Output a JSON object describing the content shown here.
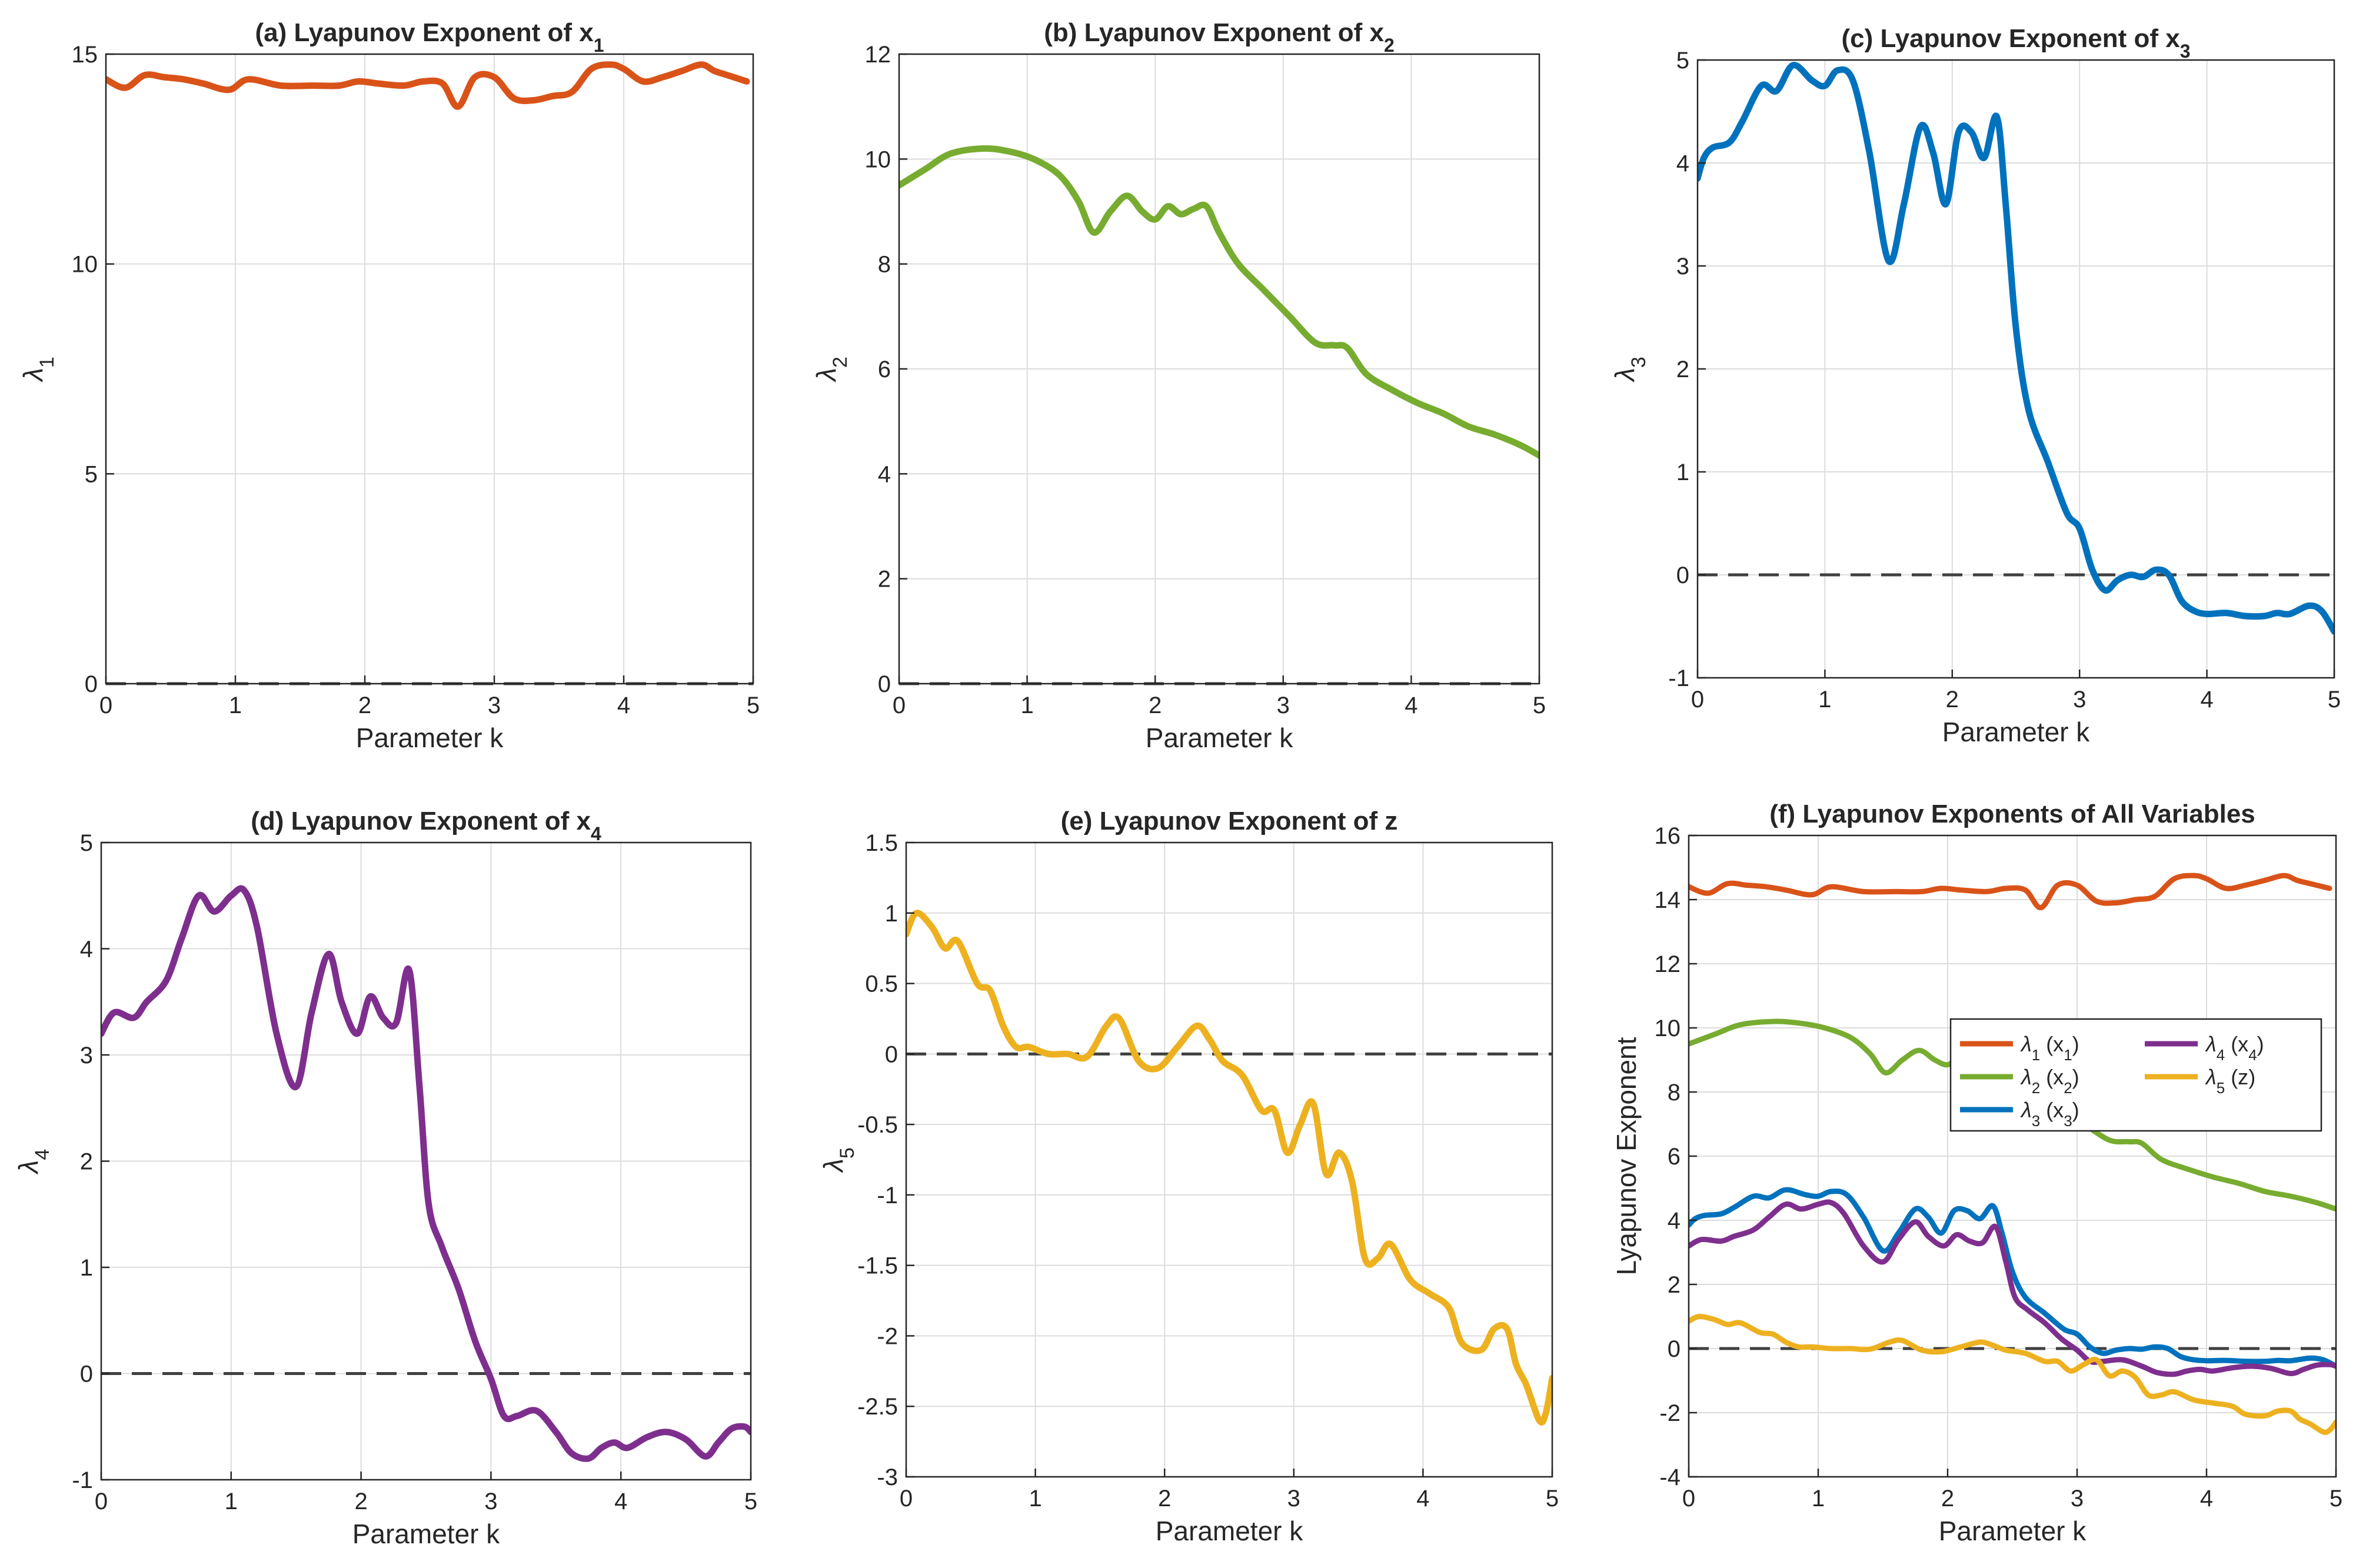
{
  "colors": {
    "lambda1": "#D95319",
    "lambda2": "#77AC30",
    "lambda3": "#0072BD",
    "lambda4": "#7E2F8E",
    "lambda5": "#EDB120",
    "zero_line": "#404040",
    "grid": "#DCDCDC",
    "axes": "#262626"
  },
  "chart_data": [
    {
      "id": "a",
      "type": "line",
      "title": "(a)  Lyapunov  Exponent  of  x",
      "title_sub": "1",
      "xlabel": "Parameter k",
      "ylabel": "λ",
      "ylabel_sub": "1",
      "xlim": [
        0,
        5
      ],
      "ylim": [
        0,
        15
      ],
      "xticks": [
        0,
        1,
        2,
        3,
        4,
        5
      ],
      "yticks": [
        0,
        5,
        10,
        15
      ],
      "grid": true,
      "zero_line": true,
      "series": [
        {
          "name": "λ1 (x1)",
          "color_key": "lambda1",
          "x": [
            0,
            0.15,
            0.3,
            0.45,
            0.6,
            0.75,
            0.95,
            1.1,
            1.35,
            1.6,
            1.8,
            1.95,
            2.1,
            2.3,
            2.45,
            2.6,
            2.72,
            2.85,
            3.0,
            3.15,
            3.3,
            3.45,
            3.6,
            3.75,
            3.9,
            4.0,
            4.15,
            4.3,
            4.45,
            4.6,
            4.7,
            4.8,
            4.95
          ],
          "y": [
            14.4,
            14.2,
            14.5,
            14.45,
            14.4,
            14.3,
            14.15,
            14.4,
            14.25,
            14.25,
            14.25,
            14.35,
            14.3,
            14.25,
            14.35,
            14.3,
            13.75,
            14.45,
            14.45,
            13.95,
            13.9,
            14.0,
            14.1,
            14.65,
            14.75,
            14.65,
            14.35,
            14.45,
            14.6,
            14.75,
            14.6,
            14.5,
            14.35
          ]
        }
      ]
    },
    {
      "id": "b",
      "type": "line",
      "title": "(b)  Lyapunov  Exponent  of  x",
      "title_sub": "2",
      "xlabel": "Parameter k",
      "ylabel": "λ",
      "ylabel_sub": "2",
      "xlim": [
        0,
        5
      ],
      "ylim": [
        0,
        12
      ],
      "xticks": [
        0,
        1,
        2,
        3,
        4,
        5
      ],
      "yticks": [
        0,
        2,
        4,
        6,
        8,
        10,
        12
      ],
      "grid": true,
      "zero_line": true,
      "series": [
        {
          "name": "λ2 (x2)",
          "color_key": "lambda2",
          "x": [
            0,
            0.2,
            0.4,
            0.65,
            0.85,
            1.05,
            1.25,
            1.4,
            1.52,
            1.65,
            1.78,
            1.9,
            2.0,
            2.1,
            2.2,
            2.3,
            2.4,
            2.5,
            2.65,
            2.85,
            3.05,
            3.25,
            3.4,
            3.5,
            3.65,
            3.85,
            4.05,
            4.25,
            4.45,
            4.65,
            4.85,
            5.0
          ],
          "y": [
            9.5,
            9.8,
            10.1,
            10.2,
            10.15,
            10.0,
            9.7,
            9.2,
            8.6,
            9.0,
            9.3,
            9.0,
            8.85,
            9.1,
            8.95,
            9.05,
            9.1,
            8.6,
            8.0,
            7.5,
            7.0,
            6.5,
            6.45,
            6.4,
            5.9,
            5.6,
            5.35,
            5.15,
            4.9,
            4.75,
            4.55,
            4.35
          ]
        }
      ]
    },
    {
      "id": "c",
      "type": "line",
      "title": "(c)  Lyapunov  Exponent  of  x",
      "title_sub": "3",
      "xlabel": "Parameter k",
      "ylabel": "λ",
      "ylabel_sub": "3",
      "xlim": [
        0,
        5
      ],
      "ylim": [
        -1,
        5
      ],
      "xticks": [
        0,
        1,
        2,
        3,
        4,
        5
      ],
      "yticks": [
        -1,
        0,
        1,
        2,
        3,
        4,
        5
      ],
      "grid": true,
      "zero_line": true,
      "series": [
        {
          "name": "λ3 (x3)",
          "color_key": "lambda3",
          "x": [
            0,
            0.05,
            0.12,
            0.25,
            0.35,
            0.5,
            0.62,
            0.75,
            0.9,
            1.0,
            1.1,
            1.22,
            1.35,
            1.5,
            1.62,
            1.75,
            1.85,
            1.95,
            2.05,
            2.15,
            2.25,
            2.35,
            2.42,
            2.5,
            2.6,
            2.75,
            2.9,
            3.0,
            3.1,
            3.2,
            3.3,
            3.4,
            3.5,
            3.6,
            3.7,
            3.8,
            3.9,
            4.0,
            4.15,
            4.3,
            4.45,
            4.55,
            4.65,
            4.8,
            4.9,
            5.0
          ],
          "y": [
            3.85,
            4.05,
            4.15,
            4.2,
            4.4,
            4.75,
            4.7,
            4.95,
            4.8,
            4.75,
            4.9,
            4.8,
            4.1,
            3.05,
            3.6,
            4.35,
            4.1,
            3.6,
            4.3,
            4.3,
            4.05,
            4.45,
            3.6,
            2.4,
            1.6,
            1.1,
            0.6,
            0.45,
            0.05,
            -0.15,
            -0.05,
            0.0,
            -0.02,
            0.05,
            0.0,
            -0.25,
            -0.35,
            -0.38,
            -0.37,
            -0.4,
            -0.4,
            -0.37,
            -0.38,
            -0.3,
            -0.35,
            -0.55
          ]
        }
      ]
    },
    {
      "id": "d",
      "type": "line",
      "title": "(d)  Lyapunov  Exponent  of  x",
      "title_sub": "4",
      "xlabel": "Parameter k",
      "ylabel": "λ",
      "ylabel_sub": "4",
      "xlim": [
        0,
        5
      ],
      "ylim": [
        -1,
        5
      ],
      "xticks": [
        0,
        1,
        2,
        3,
        4,
        5
      ],
      "yticks": [
        -1,
        0,
        1,
        2,
        3,
        4,
        5
      ],
      "grid": true,
      "zero_line": true,
      "series": [
        {
          "name": "λ4 (x4)",
          "color_key": "lambda4",
          "x": [
            0,
            0.1,
            0.25,
            0.35,
            0.5,
            0.62,
            0.75,
            0.87,
            1.0,
            1.1,
            1.2,
            1.35,
            1.5,
            1.62,
            1.75,
            1.85,
            1.97,
            2.07,
            2.17,
            2.27,
            2.37,
            2.45,
            2.52,
            2.62,
            2.75,
            2.88,
            3.0,
            3.1,
            3.2,
            3.35,
            3.5,
            3.62,
            3.75,
            3.85,
            3.95,
            4.05,
            4.2,
            4.35,
            4.5,
            4.65,
            4.75,
            4.85,
            4.95,
            5.0
          ],
          "y": [
            3.2,
            3.4,
            3.35,
            3.5,
            3.7,
            4.1,
            4.5,
            4.35,
            4.5,
            4.55,
            4.2,
            3.2,
            2.7,
            3.4,
            3.95,
            3.5,
            3.2,
            3.55,
            3.35,
            3.3,
            3.8,
            2.7,
            1.6,
            1.2,
            0.8,
            0.3,
            -0.05,
            -0.4,
            -0.4,
            -0.35,
            -0.55,
            -0.75,
            -0.8,
            -0.7,
            -0.65,
            -0.7,
            -0.6,
            -0.55,
            -0.62,
            -0.78,
            -0.65,
            -0.52,
            -0.5,
            -0.55
          ]
        }
      ]
    },
    {
      "id": "e",
      "type": "line",
      "title": "(e) Lyapunov Exponent of z",
      "title_sub": "",
      "xlabel": "Parameter k",
      "ylabel": "λ",
      "ylabel_sub": "5",
      "xlim": [
        0,
        5
      ],
      "ylim": [
        -3,
        1.5
      ],
      "xticks": [
        0,
        1,
        2,
        3,
        4,
        5
      ],
      "yticks": [
        -3,
        -2.5,
        -2,
        -1.5,
        -1,
        -0.5,
        0,
        0.5,
        1,
        1.5
      ],
      "grid": true,
      "zero_line": true,
      "series": [
        {
          "name": "λ5 (z)",
          "color_key": "lambda5",
          "x": [
            0,
            0.08,
            0.2,
            0.3,
            0.4,
            0.55,
            0.65,
            0.75,
            0.85,
            0.95,
            1.1,
            1.25,
            1.4,
            1.55,
            1.65,
            1.8,
            1.95,
            2.1,
            2.25,
            2.35,
            2.45,
            2.6,
            2.75,
            2.85,
            2.95,
            3.05,
            3.15,
            3.25,
            3.35,
            3.45,
            3.55,
            3.65,
            3.75,
            3.9,
            4.05,
            4.2,
            4.3,
            4.45,
            4.55,
            4.65,
            4.72,
            4.8,
            4.9,
            4.95,
            5.0
          ],
          "y": [
            0.85,
            1.0,
            0.9,
            0.75,
            0.8,
            0.5,
            0.45,
            0.2,
            0.05,
            0.05,
            0.0,
            0.0,
            -0.02,
            0.2,
            0.25,
            -0.05,
            -0.1,
            0.05,
            0.2,
            0.1,
            -0.05,
            -0.15,
            -0.4,
            -0.4,
            -0.7,
            -0.5,
            -0.35,
            -0.85,
            -0.7,
            -0.9,
            -1.45,
            -1.45,
            -1.35,
            -1.6,
            -1.7,
            -1.8,
            -2.05,
            -2.1,
            -1.95,
            -1.95,
            -2.2,
            -2.35,
            -2.6,
            -2.55,
            -2.3
          ]
        }
      ]
    },
    {
      "id": "f",
      "type": "line",
      "title": "(f) Lyapunov Exponents of All Variables",
      "title_sub": "",
      "xlabel": "Parameter k",
      "ylabel": "Lyapunov Exponent",
      "ylabel_sub": "",
      "xlim": [
        0,
        5
      ],
      "ylim": [
        -4,
        16
      ],
      "xticks": [
        0,
        1,
        2,
        3,
        4,
        5
      ],
      "yticks": [
        -4,
        -2,
        0,
        2,
        4,
        6,
        8,
        10,
        12,
        14,
        16
      ],
      "grid": true,
      "zero_line": true,
      "legend": {
        "placement": "right-middle",
        "entries": [
          {
            "sym": "λ",
            "sub": "1",
            "label": "  (x",
            "label_sub": "1",
            "tail": ")",
            "color_key": "lambda1"
          },
          {
            "sym": "λ",
            "sub": "4",
            "label": "  (x",
            "label_sub": "4",
            "tail": ")",
            "color_key": "lambda4"
          },
          {
            "sym": "λ",
            "sub": "2",
            "label": "  (x",
            "label_sub": "2",
            "tail": ")",
            "color_key": "lambda2"
          },
          {
            "sym": "λ",
            "sub": "5",
            "label": "  (z",
            "label_sub": "",
            "tail": ")",
            "color_key": "lambda5"
          },
          {
            "sym": "λ",
            "sub": "3",
            "label": "  (x",
            "label_sub": "3",
            "tail": ")",
            "color_key": "lambda3"
          }
        ]
      },
      "series_refs": [
        "a",
        "b",
        "c",
        "d",
        "e"
      ],
      "series_colors": [
        "lambda1",
        "lambda2",
        "lambda3",
        "lambda4",
        "lambda5"
      ]
    }
  ]
}
